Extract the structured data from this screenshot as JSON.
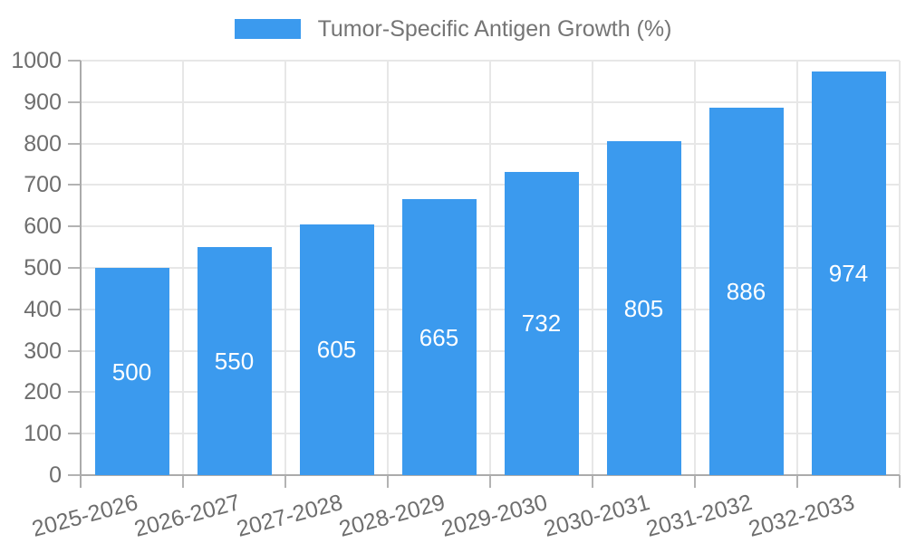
{
  "chart_data": {
    "type": "bar",
    "title": "Tumor-Specific Antigen Growth (%)",
    "categories": [
      "2025-2026",
      "2026-2027",
      "2027-2028",
      "2028-2029",
      "2029-2030",
      "2030-2031",
      "2031-2032",
      "2032-2033"
    ],
    "values": [
      500,
      550,
      605,
      665,
      732,
      805,
      886,
      974
    ],
    "xlabel": "",
    "ylabel": "",
    "ylim": [
      0,
      1000
    ],
    "y_tick_step": 100,
    "y_tick_labels": [
      "0",
      "100",
      "200",
      "300",
      "400",
      "500",
      "600",
      "700",
      "800",
      "900",
      "1000"
    ],
    "grid": true,
    "legend_position": "top-center",
    "x_label_rotation_deg": -15,
    "value_labels_shown_inside_bars": true,
    "colors": {
      "bar": "#3B9AEE",
      "bar_value_text": "#ffffff",
      "axis_text": "#6e6e6e",
      "legend_text": "#757575",
      "grid_line": "#e7e7e7",
      "axis_line": "#ababab",
      "background": "#ffffff"
    }
  }
}
